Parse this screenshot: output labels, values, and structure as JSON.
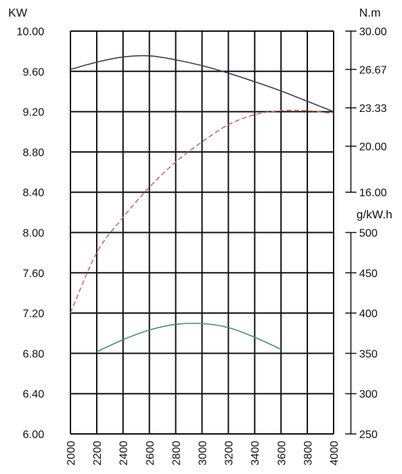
{
  "chart_data": {
    "type": "line",
    "title": "",
    "grid": true,
    "x_axis": {
      "label": "",
      "range": [
        2000,
        4000
      ],
      "ticks": [
        "2000",
        "2200",
        "2400",
        "2600",
        "2800",
        "3000",
        "3200",
        "3400",
        "3600",
        "3800",
        "4000"
      ]
    },
    "axes": {
      "power": {
        "unit_label": "KW",
        "side": "left",
        "range": [
          6.0,
          10.0
        ],
        "ticks": [
          "10.00",
          "9.60",
          "9.20",
          "8.80",
          "8.40",
          "8.00",
          "7.60",
          "7.20",
          "6.80",
          "6.40",
          "6.00"
        ]
      },
      "torque": {
        "unit_label": "N.m",
        "side": "right",
        "range": [
          16.0,
          30.0
        ],
        "ticks": [
          "30.00",
          "26.67",
          "23.33",
          "20.00",
          "16.00"
        ]
      },
      "fuel": {
        "unit_label": "g/kW.h",
        "side": "right",
        "range": [
          250,
          500
        ],
        "ticks": [
          "500",
          "450",
          "400",
          "350",
          "300",
          "250"
        ]
      }
    },
    "series": [
      {
        "axis": "torque",
        "color": "#3a3a5a",
        "style": "solid",
        "x": [
          2000,
          2200,
          2400,
          2600,
          2800,
          3000,
          3200,
          3400,
          3600,
          3800,
          4000
        ],
        "y": [
          26.67,
          27.3,
          27.75,
          27.85,
          27.5,
          27.0,
          26.35,
          25.6,
          24.8,
          23.9,
          23.0
        ]
      },
      {
        "axis": "power",
        "color": "#c07060",
        "style": "dashed",
        "x": [
          2000,
          2200,
          2400,
          2600,
          2800,
          3000,
          3200,
          3400,
          3600,
          3800,
          4000
        ],
        "y": [
          7.2,
          7.8,
          8.15,
          8.45,
          8.7,
          8.9,
          9.07,
          9.17,
          9.21,
          9.21,
          9.18
        ]
      },
      {
        "axis": "fuel",
        "color": "#3f9070",
        "style": "solid",
        "x": [
          2200,
          2400,
          2600,
          2800,
          3000,
          3200,
          3400,
          3600
        ],
        "y": [
          352,
          367,
          379,
          386,
          387,
          382,
          370,
          355
        ]
      }
    ]
  }
}
